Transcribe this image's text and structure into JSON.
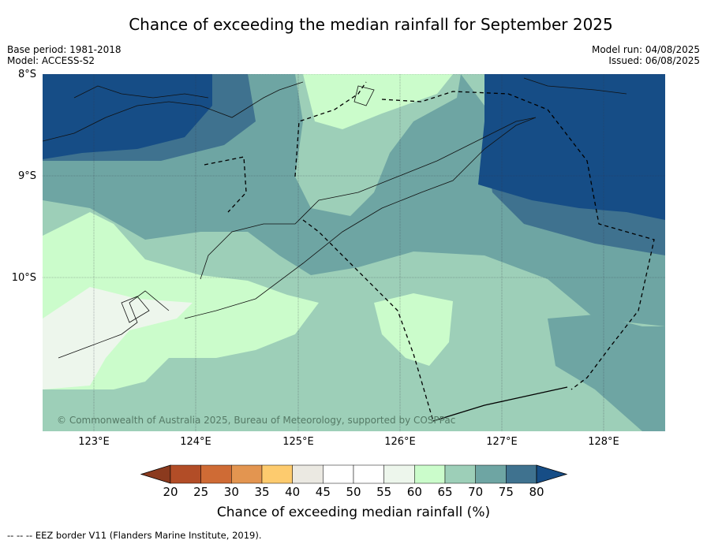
{
  "title": "Chance of exceeding the median rainfall for September 2025",
  "base_period": "Base period: 1981-2018",
  "model": "Model: ACCESS-S2",
  "model_run": "Model run: 04/08/2025",
  "issued": "Issued: 06/08/2025",
  "copyright": "© Commonwealth of Australia 2025, Bureau of Meteorology, supported by COSPPac",
  "footnote": "--  --  -- EEZ border V11 (Flanders Marine Institute, 2019).",
  "lat_labels": [
    "8°S",
    "9°S",
    "10°S"
  ],
  "lon_labels": [
    "123°E",
    "124°E",
    "125°E",
    "126°E",
    "127°E",
    "128°E"
  ],
  "colorbar": {
    "title": "Chance of exceeding median rainfall (%)",
    "ticks": [
      "20",
      "25",
      "30",
      "35",
      "40",
      "45",
      "50",
      "55",
      "60",
      "65",
      "70",
      "75",
      "80"
    ],
    "colors": [
      "#8b3a1e",
      "#b24d27",
      "#cf6b35",
      "#e39550",
      "#fdcb6e",
      "#ebe9e2",
      "#ffffff",
      "#ffffff",
      "#edf6ec",
      "#cbfccb",
      "#9dcfb8",
      "#6ea5a3",
      "#3f728f",
      "#164d86"
    ]
  }
}
